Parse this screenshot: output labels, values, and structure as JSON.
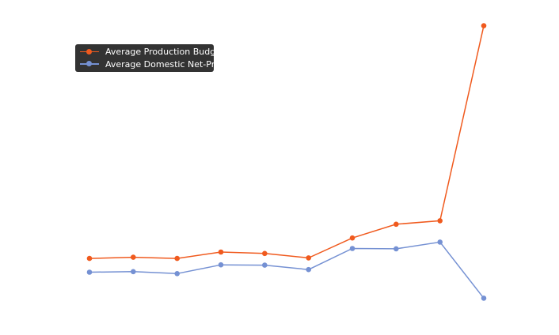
{
  "chart_data": {
    "type": "line",
    "title": "",
    "xlabel": "",
    "ylabel": "",
    "grid": false,
    "legend_placement": "upper-left",
    "x": [
      1,
      2,
      3,
      4,
      5,
      6,
      7,
      8,
      9,
      10
    ],
    "ylim": [
      0,
      100
    ],
    "series": [
      {
        "name": "Average Production Budget",
        "color": "#F05A1E",
        "values": [
          17.0,
          17.4,
          17.0,
          19.2,
          18.7,
          17.2,
          24.0,
          28.7,
          29.9,
          96.6
        ]
      },
      {
        "name": "Average Domestic Net-Profit",
        "color": "#7591D3",
        "values": [
          12.3,
          12.5,
          11.8,
          14.8,
          14.7,
          13.2,
          20.4,
          20.3,
          22.6,
          3.4
        ]
      }
    ]
  }
}
